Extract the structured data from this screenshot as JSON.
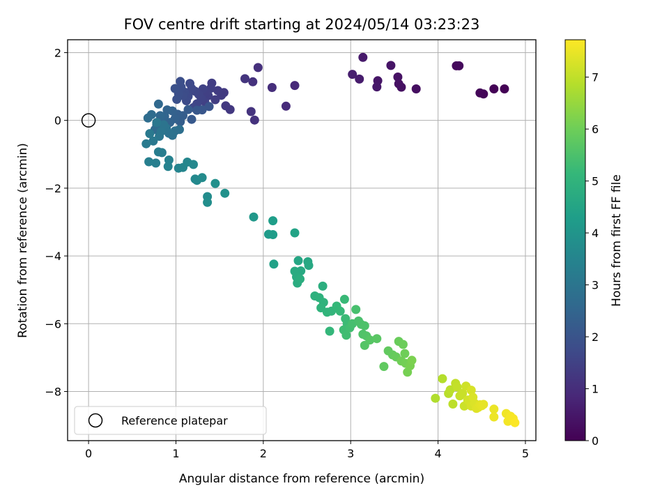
{
  "chart_data": {
    "type": "scatter",
    "title": "FOV centre drift starting at 2024/05/14 03:23:23",
    "xlabel": "Angular distance from reference (arcmin)",
    "ylabel": "Rotation from reference (arcmin)",
    "xlim": [
      -0.24,
      5.12
    ],
    "ylim": [
      -9.45,
      2.38
    ],
    "xticks": [
      0,
      1,
      2,
      3,
      4,
      5
    ],
    "yticks": [
      2,
      0,
      -2,
      -4,
      -6,
      -8
    ],
    "grid": true,
    "legend": {
      "placement": "lower-left",
      "entries": [
        "Reference platepar"
      ]
    },
    "reference_point": {
      "x": 0,
      "y": 0,
      "label": "Reference platepar"
    },
    "colorbar": {
      "label": "Hours from first FF file",
      "min": 0,
      "max": 7.72,
      "ticks": [
        0,
        1,
        2,
        3,
        4,
        5,
        6,
        7
      ],
      "colormap": "viridis",
      "colors": [
        "#440154",
        "#482878",
        "#3e4a89",
        "#31688e",
        "#26828e",
        "#1f9e89",
        "#35b779",
        "#6ece58",
        "#b5de2b",
        "#fde725"
      ]
    },
    "series": [
      {
        "points": [
          [
            4.76,
            0.93,
            0.02
          ],
          [
            4.64,
            0.93,
            0.05
          ],
          [
            4.52,
            0.78,
            0.08
          ],
          [
            4.48,
            0.81,
            0.1
          ],
          [
            4.24,
            1.61,
            0.18
          ],
          [
            4.21,
            1.61,
            0.2
          ],
          [
            3.75,
            0.93,
            0.28
          ],
          [
            3.58,
            0.98,
            0.32
          ],
          [
            3.55,
            1.08,
            0.35
          ],
          [
            3.54,
            1.28,
            0.38
          ],
          [
            3.46,
            1.62,
            0.42
          ],
          [
            3.31,
            1.17,
            0.46
          ],
          [
            3.3,
            0.99,
            0.5
          ],
          [
            3.14,
            1.86,
            0.55
          ],
          [
            3.1,
            1.22,
            0.6
          ],
          [
            3.02,
            1.36,
            0.65
          ],
          [
            2.36,
            1.03,
            0.9
          ],
          [
            2.26,
            0.42,
            0.95
          ],
          [
            2.1,
            0.97,
            1.0
          ],
          [
            1.94,
            1.56,
            1.05
          ],
          [
            1.9,
            0.01,
            1.1
          ],
          [
            1.88,
            1.14,
            1.12
          ],
          [
            1.86,
            0.26,
            1.15
          ],
          [
            1.79,
            1.23,
            1.18
          ],
          [
            1.62,
            0.32,
            1.25
          ],
          [
            1.57,
            0.43,
            1.28
          ],
          [
            1.55,
            0.82,
            1.3
          ],
          [
            1.52,
            0.74,
            1.33
          ],
          [
            1.48,
            0.88,
            1.35
          ],
          [
            1.45,
            0.61,
            1.38
          ],
          [
            1.41,
            1.1,
            1.4
          ],
          [
            1.4,
            0.95,
            1.42
          ],
          [
            1.37,
            0.73,
            1.45
          ],
          [
            1.35,
            0.84,
            1.47
          ],
          [
            1.33,
            0.55,
            1.5
          ],
          [
            1.31,
            0.93,
            1.52
          ],
          [
            1.29,
            0.65,
            1.55
          ],
          [
            1.26,
            0.77,
            1.57
          ],
          [
            1.24,
            0.49,
            1.6
          ],
          [
            1.22,
            0.86,
            1.62
          ],
          [
            1.2,
            0.38,
            1.65
          ],
          [
            1.18,
            0.94,
            1.67
          ],
          [
            1.16,
            1.09,
            1.7
          ],
          [
            1.14,
            0.71,
            1.72
          ],
          [
            1.12,
            0.58,
            1.75
          ],
          [
            1.1,
            0.83,
            1.77
          ],
          [
            1.08,
            0.73,
            1.8
          ],
          [
            1.06,
            0.98,
            1.82
          ],
          [
            1.05,
            1.15,
            1.85
          ],
          [
            1.03,
            0.79,
            1.87
          ],
          [
            1.01,
            0.62,
            1.9
          ],
          [
            0.99,
            0.94,
            1.92
          ],
          [
            1.38,
            0.41,
            2.0
          ],
          [
            1.3,
            0.31,
            2.05
          ],
          [
            1.24,
            0.3,
            2.1
          ],
          [
            1.18,
            0.03,
            2.15
          ],
          [
            1.14,
            0.32,
            2.2
          ],
          [
            1.08,
            0.14,
            2.25
          ],
          [
            1.05,
            -0.04,
            2.3
          ],
          [
            1.02,
            0.18,
            2.33
          ],
          [
            0.99,
            0.05,
            2.36
          ],
          [
            0.96,
            0.28,
            2.4
          ],
          [
            0.93,
            -0.06,
            2.43
          ],
          [
            0.9,
            0.31,
            2.46
          ],
          [
            0.87,
            0.12,
            2.5
          ],
          [
            0.84,
            -0.08,
            2.53
          ],
          [
            0.82,
            0.14,
            2.56
          ],
          [
            0.8,
            0.48,
            2.6
          ],
          [
            0.78,
            -0.12,
            2.63
          ],
          [
            0.76,
            -0.27,
            2.66
          ],
          [
            0.72,
            0.17,
            2.7
          ],
          [
            0.68,
            0.07,
            2.73
          ],
          [
            1.04,
            -0.27,
            2.8
          ],
          [
            0.99,
            -0.31,
            2.83
          ],
          [
            0.96,
            -0.44,
            2.86
          ],
          [
            0.92,
            -0.38,
            2.9
          ],
          [
            0.89,
            -0.23,
            2.93
          ],
          [
            0.86,
            -0.13,
            2.96
          ],
          [
            0.83,
            -0.33,
            3.0
          ],
          [
            0.81,
            -0.47,
            3.03
          ],
          [
            0.78,
            -0.06,
            3.06
          ],
          [
            0.74,
            -0.61,
            3.1
          ],
          [
            0.7,
            -0.39,
            3.13
          ],
          [
            0.66,
            -0.69,
            3.16
          ],
          [
            0.84,
            -0.95,
            3.25
          ],
          [
            0.8,
            -0.93,
            3.28
          ],
          [
            0.77,
            -1.26,
            3.31
          ],
          [
            0.69,
            -1.22,
            3.34
          ],
          [
            0.92,
            -1.17,
            3.4
          ],
          [
            0.91,
            -1.36,
            3.43
          ],
          [
            1.03,
            -1.41,
            3.5
          ],
          [
            1.08,
            -1.39,
            3.53
          ],
          [
            1.13,
            -1.23,
            3.56
          ],
          [
            1.2,
            -1.3,
            3.6
          ],
          [
            1.22,
            -1.73,
            3.63
          ],
          [
            1.24,
            -1.77,
            3.66
          ],
          [
            1.3,
            -1.69,
            3.7
          ],
          [
            1.36,
            -2.25,
            3.75
          ],
          [
            1.36,
            -2.42,
            3.8
          ],
          [
            1.45,
            -1.86,
            3.85
          ],
          [
            1.56,
            -2.15,
            3.9
          ],
          [
            1.89,
            -2.85,
            4.1
          ],
          [
            2.06,
            -3.36,
            4.2
          ],
          [
            2.11,
            -3.37,
            4.25
          ],
          [
            2.11,
            -2.96,
            4.3
          ],
          [
            2.12,
            -4.24,
            4.4
          ],
          [
            2.36,
            -3.32,
            4.45
          ],
          [
            2.4,
            -4.14,
            4.55
          ],
          [
            2.51,
            -4.17,
            4.6
          ],
          [
            2.52,
            -4.28,
            4.63
          ],
          [
            2.43,
            -4.44,
            4.66
          ],
          [
            2.36,
            -4.45,
            4.7
          ],
          [
            2.38,
            -4.62,
            4.73
          ],
          [
            2.39,
            -4.8,
            4.76
          ],
          [
            2.42,
            -4.68,
            4.8
          ],
          [
            2.68,
            -4.89,
            4.85
          ],
          [
            2.59,
            -5.18,
            4.9
          ],
          [
            2.64,
            -5.23,
            4.93
          ],
          [
            2.69,
            -5.37,
            4.96
          ],
          [
            2.66,
            -5.53,
            5.0
          ],
          [
            2.73,
            -5.66,
            5.03
          ],
          [
            2.78,
            -5.63,
            5.06
          ],
          [
            2.76,
            -6.22,
            5.1
          ],
          [
            2.84,
            -5.48,
            5.13
          ],
          [
            2.88,
            -5.63,
            5.16
          ],
          [
            2.93,
            -5.28,
            5.2
          ],
          [
            2.94,
            -5.85,
            5.23
          ],
          [
            2.96,
            -6.0,
            5.26
          ],
          [
            2.92,
            -6.18,
            5.3
          ],
          [
            2.95,
            -6.34,
            5.33
          ],
          [
            2.99,
            -6.12,
            5.36
          ],
          [
            3.02,
            -6.0,
            5.4
          ],
          [
            3.06,
            -5.58,
            5.43
          ],
          [
            3.09,
            -5.92,
            5.46
          ],
          [
            3.12,
            -6.02,
            5.5
          ],
          [
            3.16,
            -6.06,
            5.53
          ],
          [
            3.14,
            -6.31,
            5.56
          ],
          [
            3.18,
            -6.36,
            5.6
          ],
          [
            3.16,
            -6.64,
            5.63
          ],
          [
            3.22,
            -6.48,
            5.66
          ],
          [
            3.3,
            -6.44,
            5.7
          ],
          [
            3.38,
            -7.26,
            5.8
          ],
          [
            3.43,
            -6.8,
            5.83
          ],
          [
            3.48,
            -6.92,
            5.86
          ],
          [
            3.52,
            -6.98,
            5.9
          ],
          [
            3.55,
            -6.52,
            5.93
          ],
          [
            3.6,
            -6.61,
            5.96
          ],
          [
            3.62,
            -6.88,
            6.0
          ],
          [
            3.58,
            -7.1,
            6.03
          ],
          [
            3.63,
            -7.17,
            6.06
          ],
          [
            3.65,
            -7.43,
            6.1
          ],
          [
            3.68,
            -7.24,
            6.13
          ],
          [
            3.7,
            -7.08,
            6.16
          ],
          [
            3.97,
            -8.2,
            6.8
          ],
          [
            4.05,
            -7.62,
            6.85
          ],
          [
            4.12,
            -8.06,
            6.9
          ],
          [
            4.14,
            -7.95,
            6.93
          ],
          [
            4.17,
            -8.37,
            6.96
          ],
          [
            4.2,
            -7.76,
            7.0
          ],
          [
            4.22,
            -7.87,
            7.03
          ],
          [
            4.25,
            -8.13,
            7.06
          ],
          [
            4.28,
            -8.05,
            7.1
          ],
          [
            4.3,
            -8.43,
            7.13
          ],
          [
            4.32,
            -7.84,
            7.16
          ],
          [
            4.34,
            -8.25,
            7.2
          ],
          [
            4.36,
            -8.3,
            7.22
          ],
          [
            4.38,
            -8.43,
            7.25
          ],
          [
            4.38,
            -7.96,
            7.27
          ],
          [
            4.4,
            -8.17,
            7.3
          ],
          [
            4.42,
            -8.35,
            7.32
          ],
          [
            4.44,
            -8.5,
            7.35
          ],
          [
            4.46,
            -8.47,
            7.37
          ],
          [
            4.48,
            -8.39,
            7.4
          ],
          [
            4.5,
            -8.42,
            7.42
          ],
          [
            4.52,
            -8.38,
            7.45
          ],
          [
            4.64,
            -8.52,
            7.5
          ],
          [
            4.64,
            -8.75,
            7.53
          ],
          [
            4.78,
            -8.65,
            7.56
          ],
          [
            4.8,
            -8.88,
            7.6
          ],
          [
            4.83,
            -8.73,
            7.63
          ],
          [
            4.86,
            -8.8,
            7.66
          ],
          [
            4.88,
            -8.92,
            7.7
          ]
        ]
      }
    ]
  }
}
